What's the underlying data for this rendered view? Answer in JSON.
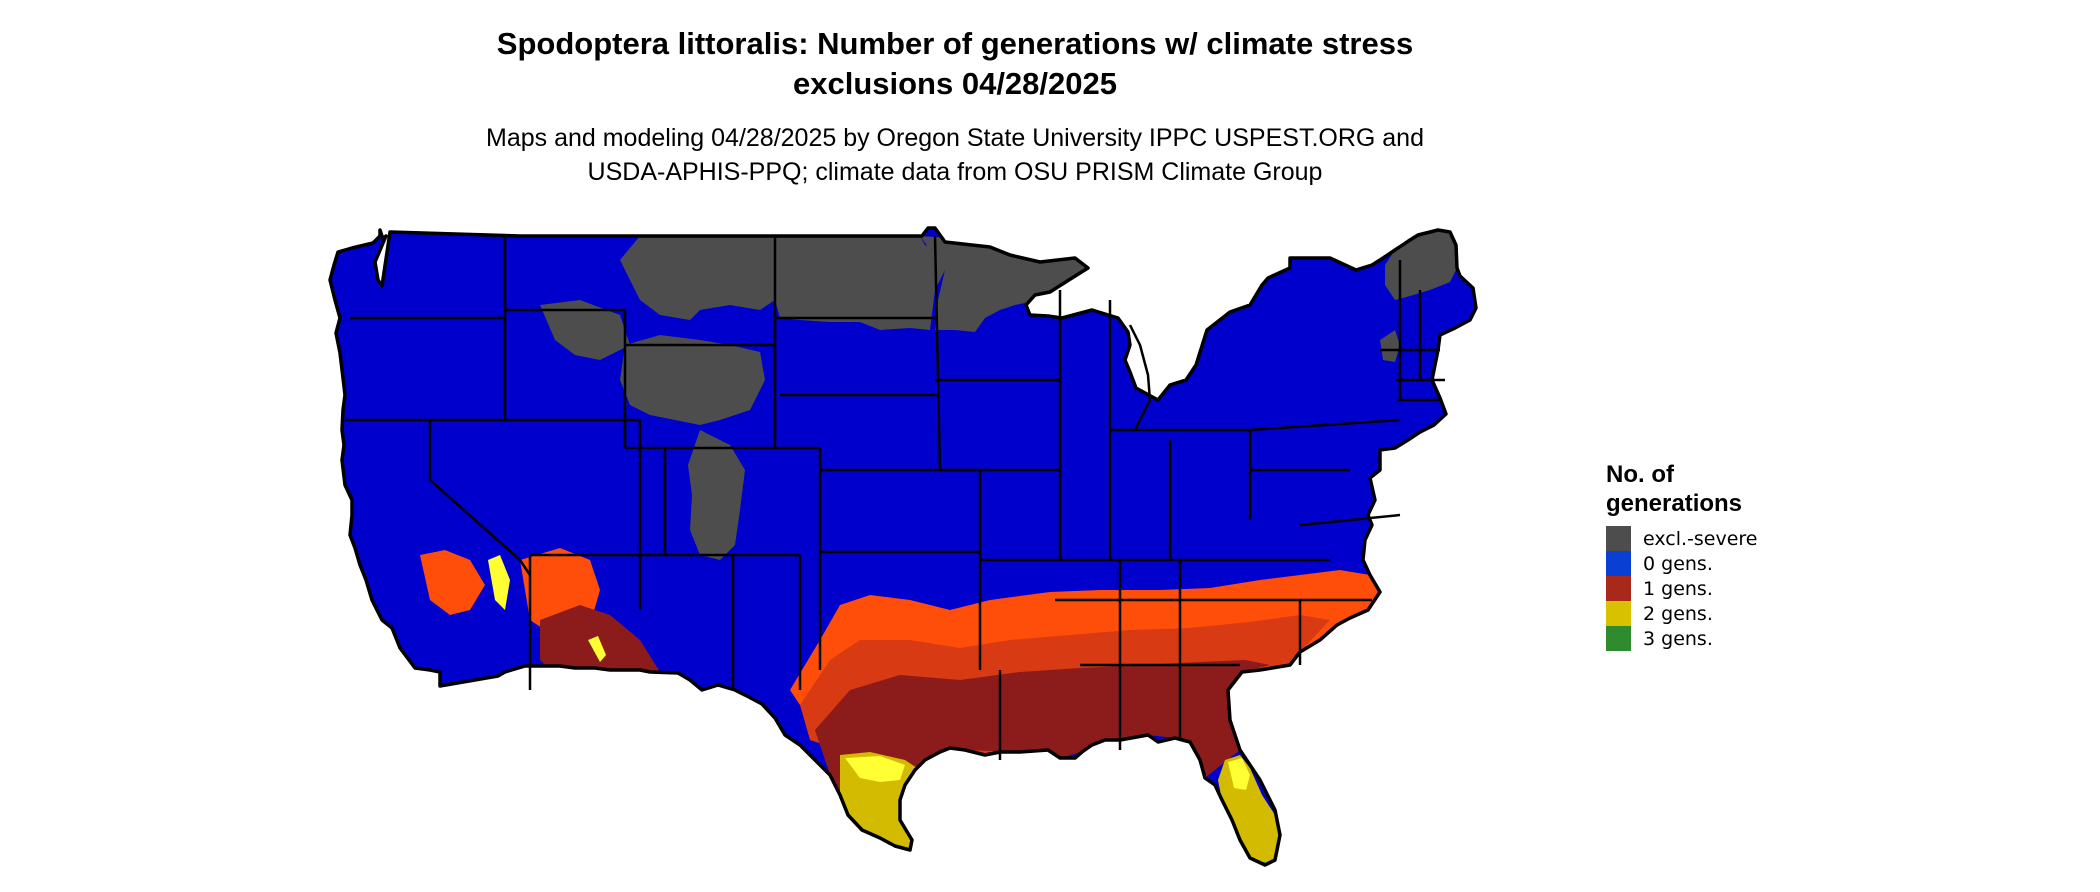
{
  "header": {
    "title_line1": "Spodoptera littoralis: Number of generations w/ climate stress",
    "title_line2": "exclusions 04/28/2025",
    "subtitle_line1": "Maps and modeling 04/28/2025 by Oregon State University IPPC USPEST.ORG and",
    "subtitle_line2": "USDA-APHIS-PPQ; climate data from OSU PRISM Climate Group"
  },
  "legend": {
    "title": "No. of generations",
    "items": [
      {
        "label": "excl.-severe",
        "color": "#4d4d4d"
      },
      {
        "label": "0 gens.",
        "color": "#0a3fd4"
      },
      {
        "label": "1 gens.",
        "color": "#a8281a"
      },
      {
        "label": "2 gens.",
        "color": "#d8c200"
      },
      {
        "label": "3 gens.",
        "color": "#2e8b2e"
      }
    ]
  },
  "map_colors": {
    "zero_gens": "#0000cc",
    "excluded": "#4d4d4d",
    "one_gen_orange": "#ff4e0a",
    "one_gen_mid": "#d83a14",
    "one_gen_dark": "#8c1c1c",
    "two_gens_bright": "#ffff33",
    "two_gens_dark": "#d2bb00",
    "three_gens": "#2e8b2e",
    "border": "#000000"
  }
}
